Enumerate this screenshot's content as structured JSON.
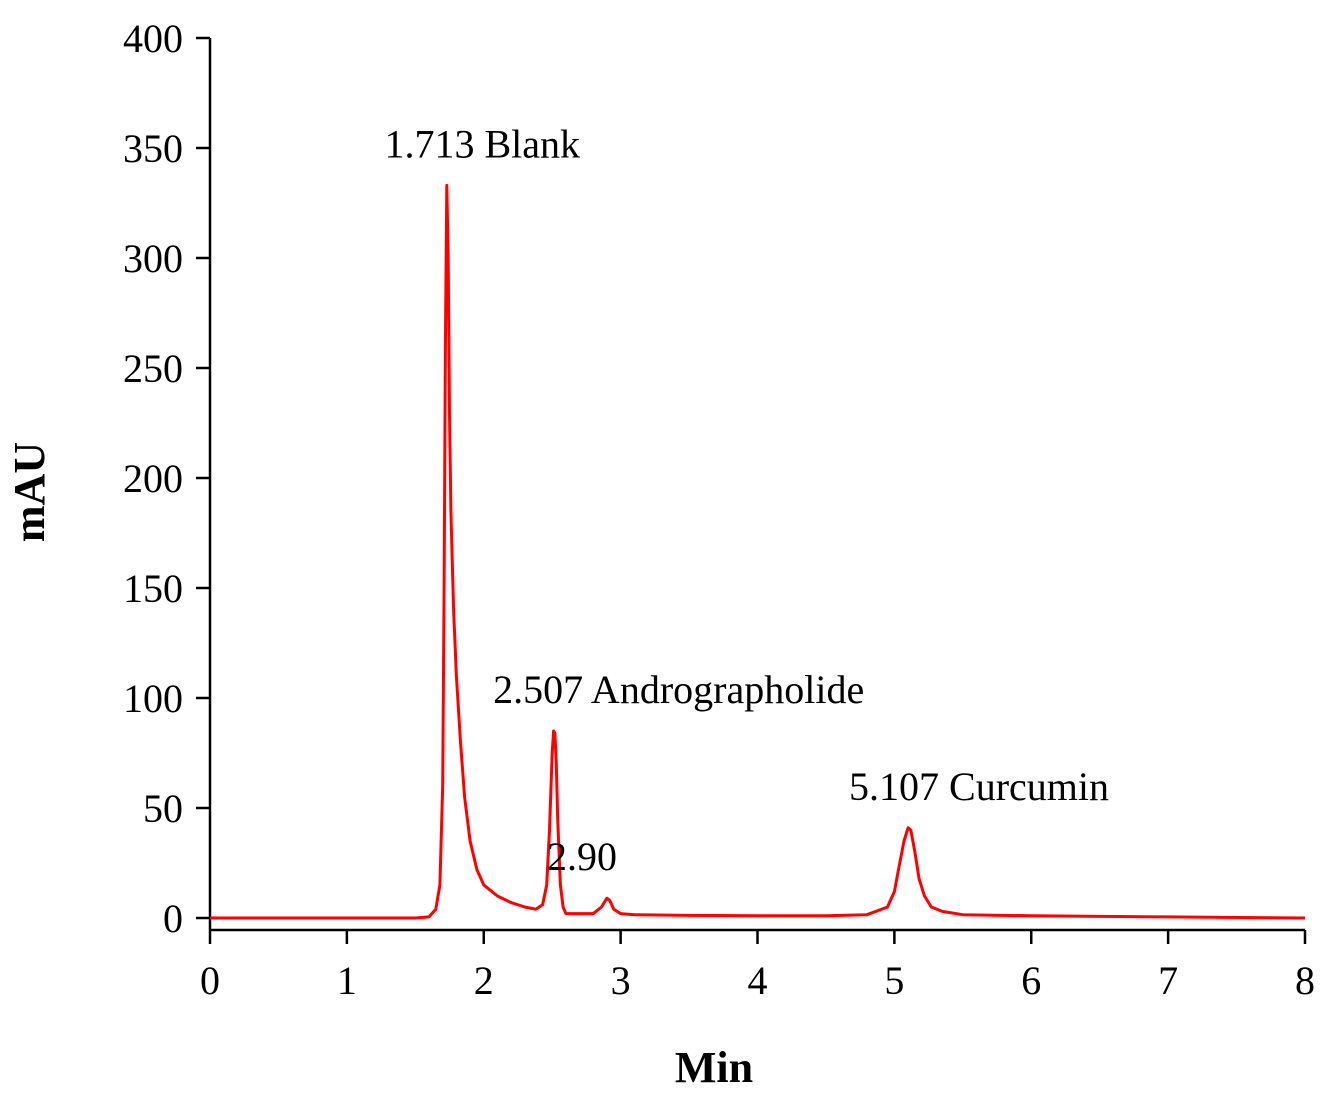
{
  "chart_data": {
    "type": "line",
    "title": "",
    "xlabel": "Min",
    "ylabel": "mAU",
    "xlim": [
      0,
      8
    ],
    "ylim": [
      0,
      400
    ],
    "xticks": [
      0,
      1,
      2,
      3,
      4,
      5,
      6,
      7,
      8
    ],
    "yticks": [
      0,
      50,
      100,
      150,
      200,
      250,
      300,
      350,
      400
    ],
    "grid": false,
    "legend": "none",
    "series": [
      {
        "color": "#ff0000",
        "x": [
          0,
          1.0,
          1.5,
          1.6,
          1.65,
          1.68,
          1.7,
          1.71,
          1.72,
          1.73,
          1.74,
          1.75,
          1.76,
          1.78,
          1.8,
          1.83,
          1.86,
          1.9,
          1.95,
          2.0,
          2.1,
          2.2,
          2.3,
          2.38,
          2.43,
          2.46,
          2.48,
          2.5,
          2.51,
          2.52,
          2.53,
          2.54,
          2.56,
          2.58,
          2.6,
          2.7,
          2.8,
          2.86,
          2.9,
          2.92,
          2.95,
          3.0,
          3.1,
          3.5,
          4.0,
          4.5,
          4.8,
          4.95,
          5.0,
          5.03,
          5.07,
          5.1,
          5.12,
          5.15,
          5.18,
          5.22,
          5.27,
          5.35,
          5.5,
          6.0,
          7.0,
          8.0
        ],
        "y": [
          0,
          0,
          0,
          0.5,
          4,
          15,
          60,
          150,
          260,
          333,
          300,
          230,
          185,
          140,
          110,
          80,
          55,
          35,
          22,
          15,
          10,
          7,
          5,
          4,
          6,
          15,
          40,
          75,
          85,
          84,
          70,
          45,
          15,
          5,
          2,
          2,
          2,
          5,
          9,
          8,
          4,
          2,
          1.5,
          1.2,
          1,
          1,
          1.5,
          5,
          12,
          22,
          35,
          41,
          40,
          30,
          18,
          10,
          5,
          3,
          1.5,
          1,
          0.5,
          0
        ]
      }
    ],
    "annotations": [
      {
        "text": "1.713 Blank",
        "x": 1.713,
        "y": 333
      },
      {
        "text": "2.507 Andrographolide",
        "x": 2.507,
        "y": 85
      },
      {
        "text": "2.90",
        "x": 2.9,
        "y": 9
      },
      {
        "text": "5.107 Curcumin",
        "x": 5.107,
        "y": 41
      }
    ]
  }
}
